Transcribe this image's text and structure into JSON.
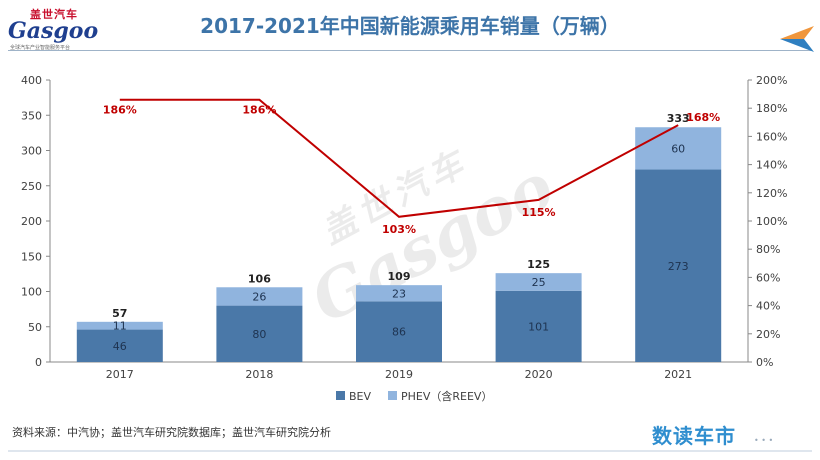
{
  "header": {
    "title": "2017-2021年中国新能源乘用车销量（万辆）",
    "logo_cn": "盖世汽车",
    "logo_en": "Gasgoo",
    "logo_tag": "全球汽车产业智能服务平台"
  },
  "watermark": {
    "cn": "盖世汽车",
    "en": "Gasgoo"
  },
  "footer": {
    "source": "资料来源：中汽协；盖世汽车研究院数据库；盖世汽车研究院分析",
    "brand": "数读车市"
  },
  "colors": {
    "title": "#3d74a8",
    "bev": "#4a78a8",
    "phev": "#90b4de",
    "line": "#c00000",
    "axis": "#888888",
    "text": "#404040"
  },
  "chart_data": {
    "type": "bar",
    "stacked": true,
    "categories": [
      "2017",
      "2018",
      "2019",
      "2020",
      "2021"
    ],
    "series": [
      {
        "name": "BEV",
        "values": [
          46,
          80,
          86,
          101,
          273
        ]
      },
      {
        "name": "PHEV（含REEV）",
        "values": [
          11,
          26,
          23,
          25,
          60
        ]
      }
    ],
    "totals": [
      57,
      106,
      109,
      125,
      333
    ],
    "growth": {
      "values": [
        186,
        186,
        103,
        115,
        168
      ],
      "labels": [
        "186%",
        "186%",
        "103%",
        "115%",
        "168%"
      ]
    },
    "ylim": [
      0,
      400
    ],
    "y_ticks": [
      "0",
      "50",
      "100",
      "150",
      "200",
      "250",
      "300",
      "350",
      "400"
    ],
    "y2lim": [
      0,
      200
    ],
    "y2_ticks": [
      "0%",
      "20%",
      "40%",
      "60%",
      "80%",
      "100%",
      "120%",
      "140%",
      "160%",
      "180%",
      "200%"
    ],
    "legend": "bottom",
    "grid": false
  }
}
